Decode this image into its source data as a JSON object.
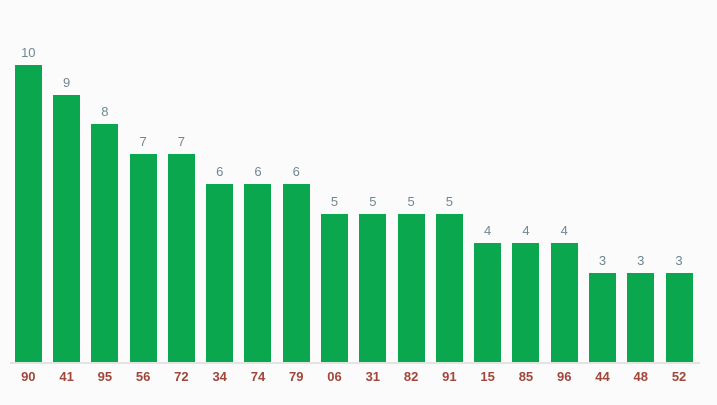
{
  "chart_data": {
    "type": "bar",
    "title": "",
    "xlabel": "",
    "ylabel": "",
    "categories": [
      "90",
      "41",
      "95",
      "56",
      "72",
      "34",
      "74",
      "79",
      "06",
      "31",
      "82",
      "91",
      "15",
      "85",
      "96",
      "44",
      "48",
      "52"
    ],
    "values": [
      10,
      9,
      8,
      7,
      7,
      6,
      6,
      6,
      5,
      5,
      5,
      5,
      4,
      4,
      4,
      3,
      3,
      3
    ],
    "value_labels": [
      "10",
      "9",
      "8",
      "7",
      "7",
      "6",
      "6",
      "6",
      "5",
      "5",
      "5",
      "5",
      "4",
      "4",
      "4",
      "3",
      "3",
      "3"
    ],
    "ylim": [
      0,
      10
    ],
    "grid": false,
    "legend": "none",
    "bar_count": 18
  },
  "colors": {
    "bar": "#0aa74f",
    "value_label": "#6f8793",
    "category_label": "#a0463a",
    "baseline": "#e3e3e3",
    "background": "#fbfbfb"
  }
}
